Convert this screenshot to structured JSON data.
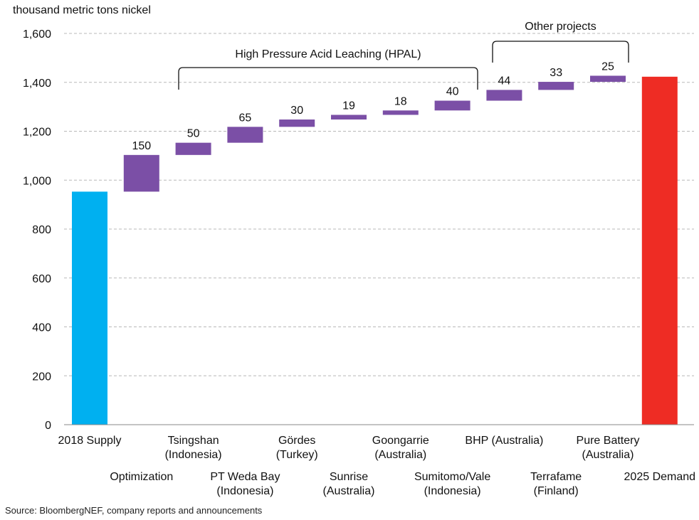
{
  "chart_data": {
    "type": "bar",
    "subtype": "waterfall",
    "ylabel": "thousand metric tons nickel",
    "ylim": [
      0,
      1600
    ],
    "yticks": [
      "0",
      "200",
      "400",
      "600",
      "800",
      "1,000",
      "1,200",
      "1,400",
      "1,600"
    ],
    "ytick_values": [
      0,
      200,
      400,
      600,
      800,
      1000,
      1200,
      1400,
      1600
    ],
    "grid": true,
    "bars": [
      {
        "label": "2018 Supply",
        "label2": "",
        "kind": "total",
        "start": 0,
        "value": 953,
        "value_label": "",
        "color": "#00b0f0",
        "row": 0
      },
      {
        "label": "Optimization",
        "label2": "",
        "kind": "increment",
        "start": 953,
        "value": 150,
        "value_label": "150",
        "color": "#7b4fa6",
        "row": 1
      },
      {
        "label": "Tsingshan",
        "label2": "(Indonesia)",
        "kind": "increment",
        "start": 1103,
        "value": 50,
        "value_label": "50",
        "color": "#7b4fa6",
        "row": 0
      },
      {
        "label": "PT Weda Bay",
        "label2": "(Indonesia)",
        "kind": "increment",
        "start": 1153,
        "value": 65,
        "value_label": "65",
        "color": "#7b4fa6",
        "row": 1
      },
      {
        "label": "Gördes",
        "label2": "(Turkey)",
        "kind": "increment",
        "start": 1218,
        "value": 30,
        "value_label": "30",
        "color": "#7b4fa6",
        "row": 0
      },
      {
        "label": "Sunrise",
        "label2": "(Australia)",
        "kind": "increment",
        "start": 1248,
        "value": 19,
        "value_label": "19",
        "color": "#7b4fa6",
        "row": 1
      },
      {
        "label": "Goongarrie",
        "label2": "(Australia)",
        "kind": "increment",
        "start": 1267,
        "value": 18,
        "value_label": "18",
        "color": "#7b4fa6",
        "row": 0
      },
      {
        "label": "Sumitomo/Vale",
        "label2": "(Indonesia)",
        "kind": "increment",
        "start": 1285,
        "value": 40,
        "value_label": "40",
        "color": "#7b4fa6",
        "row": 1
      },
      {
        "label": "BHP (Australia)",
        "label2": "",
        "kind": "increment",
        "start": 1325,
        "value": 44,
        "value_label": "44",
        "color": "#7b4fa6",
        "row": 0
      },
      {
        "label": "Terrafame",
        "label2": "(Finland)",
        "kind": "increment",
        "start": 1369,
        "value": 33,
        "value_label": "33",
        "color": "#7b4fa6",
        "row": 1
      },
      {
        "label": "Pure Battery",
        "label2": "(Australia)",
        "kind": "increment",
        "start": 1402,
        "value": 25,
        "value_label": "25",
        "color": "#7b4fa6",
        "row": 0
      },
      {
        "label": "2025 Demand",
        "label2": "",
        "kind": "total",
        "start": 0,
        "value": 1423,
        "value_label": "",
        "color": "#ee2c24",
        "row": 1
      }
    ],
    "annotations": [
      {
        "text": "High Pressure Acid Leaching (HPAL)",
        "from_bar": 2,
        "to_bar": 7
      },
      {
        "text": "Other projects",
        "from_bar": 8,
        "to_bar": 10
      }
    ]
  },
  "source": "Source: BloombergNEF, company reports and announcements"
}
